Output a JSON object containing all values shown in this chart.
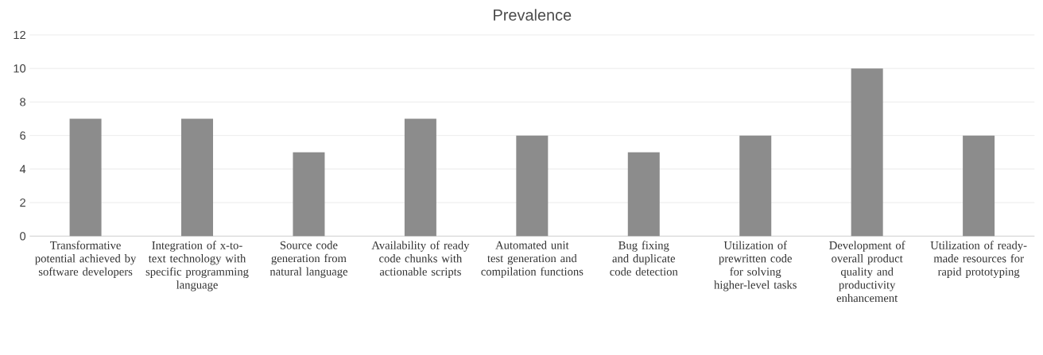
{
  "chart_data": {
    "type": "bar",
    "title": "Prevalence",
    "categories": [
      "Transformative potential achieved by software developers",
      "Integration of x-to-text technology with specific programming language",
      "Source code generation from natural language",
      "Availability of ready code chunks with actionable scripts",
      "Automated unit test generation and compilation functions",
      "Bug fixing and duplicate code detection",
      "Utilization of prewritten code for solving higher-level tasks",
      "Development of overall product quality and productivity enhancement",
      "Utilization of ready-made resources for rapid prototyping"
    ],
    "values": [
      7,
      7,
      5,
      7,
      6,
      5,
      6,
      10,
      6
    ],
    "color": "#8c8c8c",
    "ylim": [
      0,
      12
    ],
    "yticks": [
      0,
      2,
      4,
      6,
      8,
      10,
      12
    ],
    "grid": "y"
  }
}
